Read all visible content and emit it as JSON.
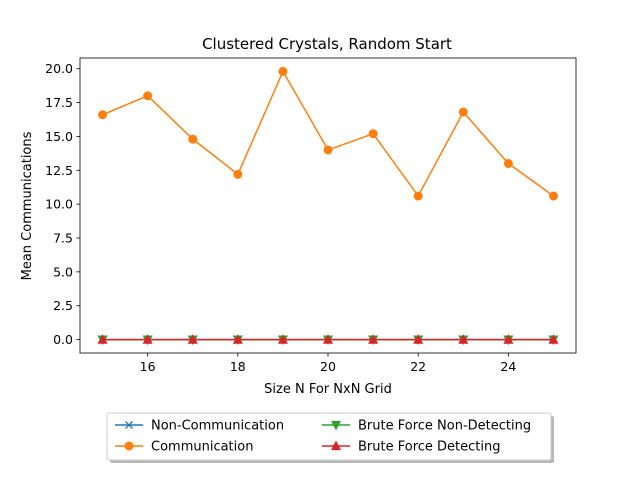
{
  "chart_data": {
    "type": "line",
    "title": "Clustered Crystals, Random Start",
    "xlabel": "Size N For NxN Grid",
    "ylabel": "Mean Communications",
    "x": [
      15,
      16,
      17,
      18,
      19,
      20,
      21,
      22,
      23,
      24,
      25
    ],
    "xlim": [
      14.5,
      25.5
    ],
    "ylim": [
      -0.99,
      20.79
    ],
    "xticks": [
      16,
      18,
      20,
      22,
      24
    ],
    "xtick_labels": [
      "16",
      "18",
      "20",
      "22",
      "24"
    ],
    "yticks": [
      0,
      2.5,
      5,
      7.5,
      10,
      12.5,
      15,
      17.5,
      20
    ],
    "ytick_labels": [
      "0.0",
      "2.5",
      "5.0",
      "7.5",
      "10.0",
      "12.5",
      "15.0",
      "17.5",
      "20.0"
    ],
    "grid": false,
    "legend_position": "bottom-center",
    "series": [
      {
        "name": "Non-Communication",
        "color": "#1f77b4",
        "marker": "x",
        "values": [
          0,
          0,
          0,
          0,
          0,
          0,
          0,
          0,
          0,
          0,
          0
        ]
      },
      {
        "name": "Communication",
        "color": "#ff7f0e",
        "marker": "circle",
        "values": [
          16.6,
          18.0,
          14.8,
          12.2,
          19.8,
          14.0,
          15.2,
          10.6,
          16.8,
          13.0,
          10.6
        ]
      },
      {
        "name": "Brute Force Non-Detecting",
        "color": "#2ca02c",
        "marker": "triangle-down",
        "values": [
          0,
          0,
          0,
          0,
          0,
          0,
          0,
          0,
          0,
          0,
          0
        ]
      },
      {
        "name": "Brute Force Detecting",
        "color": "#d62728",
        "marker": "triangle-up",
        "values": [
          0,
          0,
          0,
          0,
          0,
          0,
          0,
          0,
          0,
          0,
          0
        ]
      }
    ]
  }
}
